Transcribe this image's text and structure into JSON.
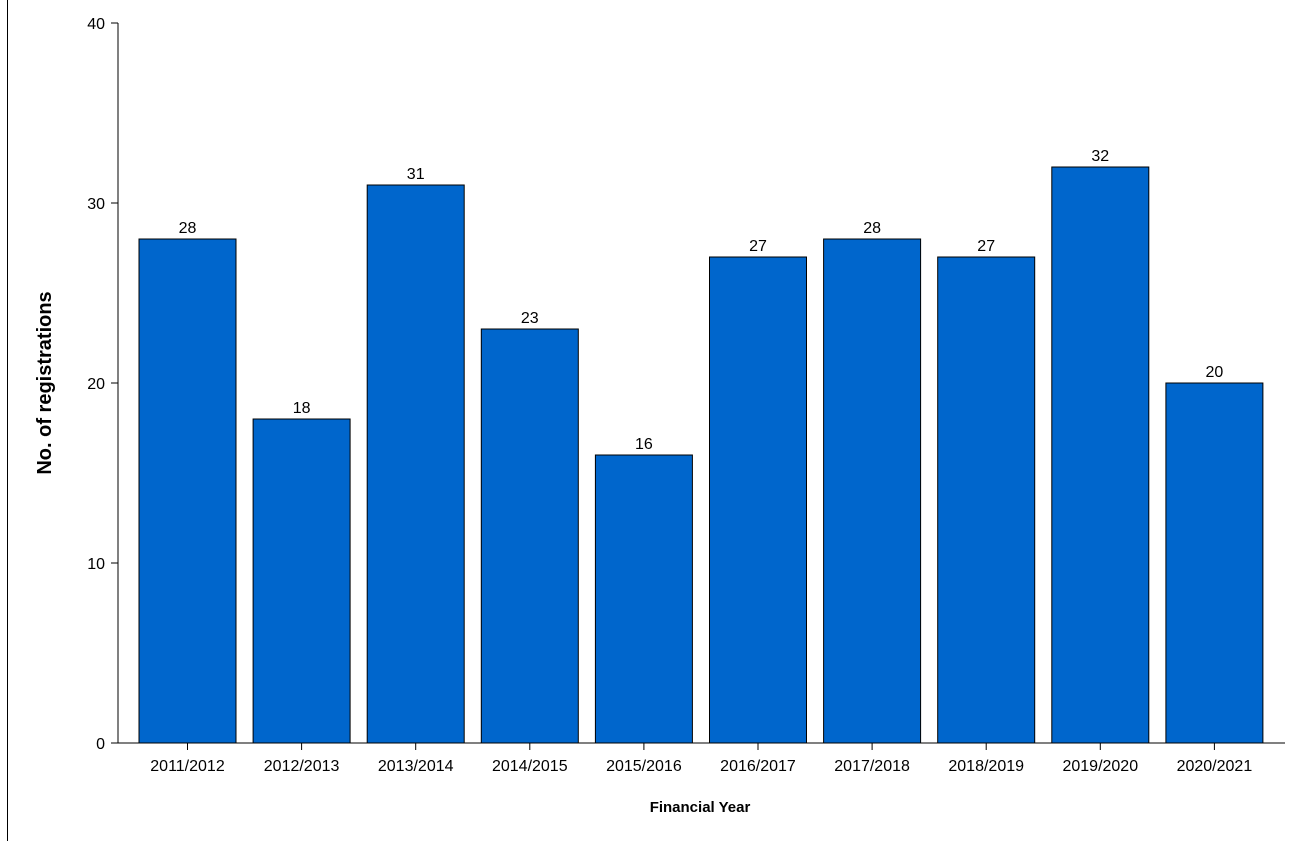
{
  "chart_data": {
    "type": "bar",
    "title": "",
    "xlabel": "Financial Year",
    "ylabel": "No. of registrations",
    "categories": [
      "2011/2012",
      "2012/2013",
      "2013/2014",
      "2014/2015",
      "2015/2016",
      "2016/2017",
      "2017/2018",
      "2018/2019",
      "2019/2020",
      "2020/2021"
    ],
    "values": [
      28,
      18,
      31,
      23,
      16,
      27,
      28,
      27,
      32,
      20
    ],
    "data_labels": [
      "28",
      "18",
      "31",
      "23",
      "16",
      "27",
      "28",
      "27",
      "32",
      "20"
    ],
    "ylim": [
      0,
      40
    ],
    "yticks": [
      0,
      10,
      20,
      30,
      40
    ],
    "ytick_labels": [
      "0",
      "10",
      "20",
      "30",
      "40"
    ],
    "grid": false,
    "legend": "none",
    "colors": {
      "bar": "#0066CC",
      "bar_edge": "#000000",
      "axis": "#000000",
      "text": "#000000"
    }
  }
}
